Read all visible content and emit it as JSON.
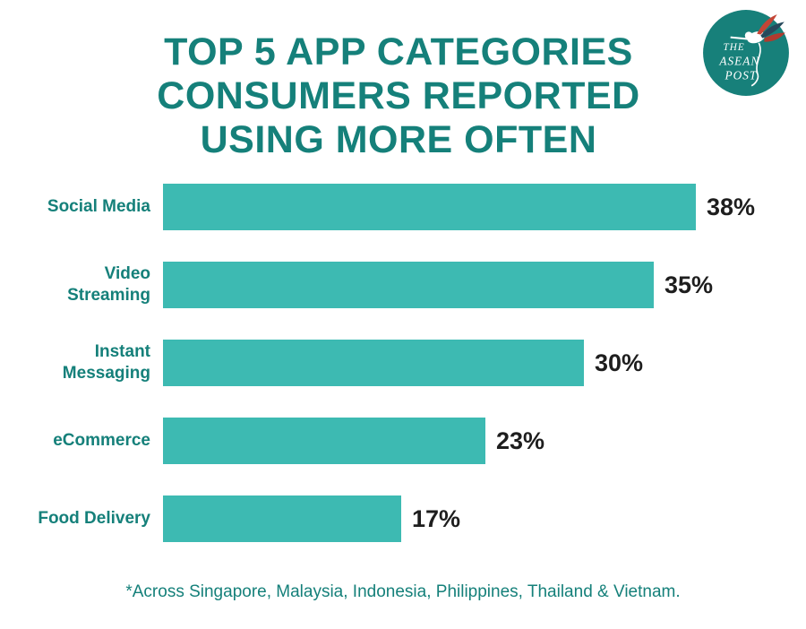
{
  "logo": {
    "line1": "THE",
    "line2": "ASEAN",
    "line3": "POST",
    "bg_color": "#17807a"
  },
  "chart_data": {
    "type": "bar",
    "orientation": "horizontal",
    "title": "TOP 5 APP CATEGORIES CONSUMERS REPORTED USING MORE OFTEN",
    "title_lines": [
      "TOP 5 APP CATEGORIES",
      "CONSUMERS REPORTED",
      "USING MORE OFTEN"
    ],
    "categories": [
      "Social Media",
      "Video Streaming",
      "Instant Messaging",
      "eCommerce",
      "Food Delivery"
    ],
    "display_labels": [
      "Social Media",
      "Video\nStreaming",
      "Instant\nMessaging",
      "eCommerce",
      "Food Delivery"
    ],
    "values": [
      38,
      35,
      30,
      23,
      17
    ],
    "value_labels": [
      "38%",
      "35%",
      "30%",
      "23%",
      "17%"
    ],
    "xlim": [
      0,
      38
    ],
    "grid": false,
    "legend": "none",
    "bar_color": "#3dbab2",
    "label_color": "#15807a",
    "value_color": "#1e1e1e",
    "footnote": "*Across Singapore, Malaysia, Indonesia, Philippines, Thailand & Vietnam."
  }
}
